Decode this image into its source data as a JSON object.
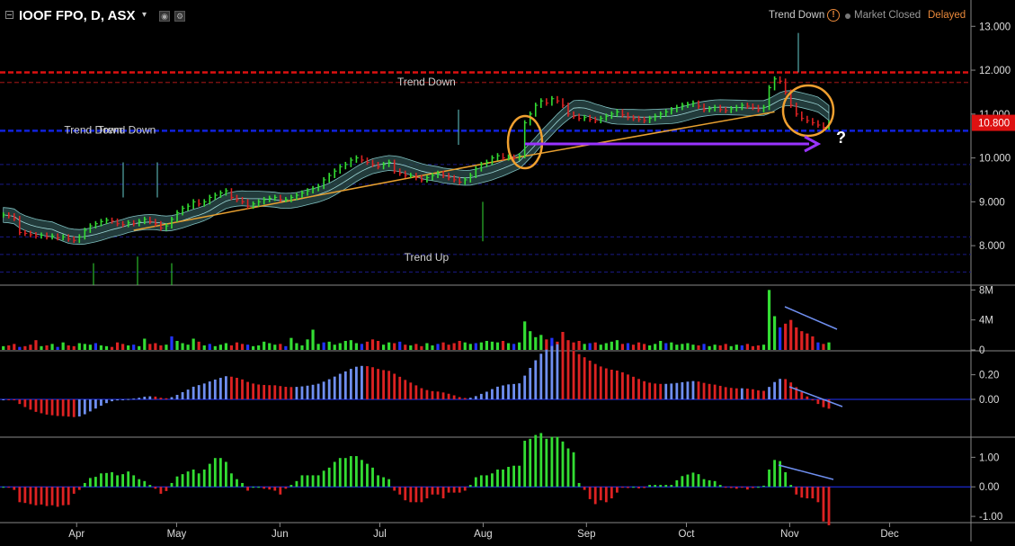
{
  "header": {
    "symbol": "IOOF FPO, D, ASX",
    "caret": "▾",
    "status_trend": "Trend Down",
    "status_market": "Market Closed",
    "status_delayed": "Delayed",
    "info_glyph": "!"
  },
  "colors": {
    "background": "#000000",
    "up": "#33dd33",
    "down": "#dd2222",
    "neutral": "#2233ff",
    "macd": "#6f8ff0",
    "trendline": "#e8a030",
    "arrow": "#9933ff",
    "resistance": "#dd1111",
    "support": "#1122dd",
    "status_delayed": "#e8883a",
    "price_tag": "#dd1111"
  },
  "question_mark": "?",
  "chart_data": [
    {
      "type": "line",
      "panel": "price",
      "x_axis": {
        "labels": [
          "Apr",
          "May",
          "Jun",
          "Jul",
          "Aug",
          "Sep",
          "Oct",
          "Nov",
          "Dec"
        ],
        "start_date": "2018-03-09",
        "end_date": "2018-12-20"
      },
      "y_axis": {
        "ticks": [
          "13.000",
          "12.000",
          "11.000",
          "10.000",
          "9.000",
          "8.000"
        ],
        "ylim": [
          7.1,
          13.6
        ]
      },
      "last_price": "10.800",
      "series": [
        {
          "kind": "close",
          "values": [
            8.7,
            8.68,
            8.62,
            8.3,
            8.28,
            8.25,
            8.22,
            8.24,
            8.2,
            8.22,
            8.18,
            8.2,
            8.15,
            8.12,
            8.2,
            8.35,
            8.45,
            8.5,
            8.55,
            8.58,
            8.56,
            8.5,
            8.48,
            8.52,
            8.5,
            8.55,
            8.6,
            8.55,
            8.5,
            8.4,
            8.45,
            8.6,
            8.75,
            8.85,
            8.9,
            9.0,
            8.95,
            9.0,
            9.1,
            9.15,
            9.2,
            9.25,
            9.1,
            9.05,
            9.0,
            8.9,
            8.95,
            9.0,
            9.05,
            9.08,
            9.1,
            9.05,
            9.05,
            9.1,
            9.15,
            9.2,
            9.25,
            9.3,
            9.35,
            9.5,
            9.6,
            9.7,
            9.8,
            9.85,
            9.95,
            10.0,
            9.95,
            9.9,
            9.85,
            9.8,
            9.85,
            9.9,
            9.7,
            9.65,
            9.6,
            9.6,
            9.55,
            9.5,
            9.55,
            9.6,
            9.65,
            9.6,
            9.55,
            9.5,
            9.45,
            9.5,
            9.6,
            9.75,
            9.85,
            9.9,
            10.0,
            10.05,
            10.0,
            10.02,
            10.0,
            10.05,
            10.8,
            11.0,
            11.2,
            11.3,
            11.25,
            11.35,
            11.3,
            11.2,
            11.0,
            10.95,
            10.9,
            10.92,
            10.88,
            10.85,
            10.9,
            10.95,
            11.0,
            11.05,
            10.98,
            10.92,
            10.9,
            10.88,
            10.85,
            10.9,
            10.95,
            11.0,
            11.05,
            11.1,
            11.15,
            11.2,
            11.22,
            11.25,
            11.18,
            11.1,
            11.12,
            11.15,
            11.1,
            11.08,
            11.12,
            11.15,
            11.2,
            11.18,
            11.15,
            11.1,
            11.15,
            11.6,
            11.8,
            11.75,
            11.5,
            11.2,
            11.0,
            10.9,
            10.85,
            10.8,
            10.75,
            10.7,
            10.8
          ]
        },
        {
          "kind": "annotation",
          "values": [
            {
              "text": "Trend Down",
              "date": "2018-07-15",
              "price": 11.65
            },
            {
              "text": "Trend Down",
              "date": "2018-04-06",
              "price": 10.55
            },
            {
              "text": "Trend Down",
              "date": "2018-04-16",
              "price": 10.55
            },
            {
              "text": "Trend Up",
              "date": "2018-07-15",
              "price": 7.65
            }
          ]
        }
      ]
    },
    {
      "type": "bar",
      "panel": "volume",
      "y_axis": {
        "ticks": [
          "8M",
          "4M",
          "0"
        ],
        "ylim": [
          0,
          8.4
        ]
      },
      "values_millions": [
        0.5,
        0.6,
        0.8,
        0.4,
        0.5,
        0.7,
        1.3,
        0.5,
        0.6,
        0.8,
        0.4,
        1.0,
        0.6,
        0.5,
        0.9,
        0.8,
        0.7,
        0.9,
        0.6,
        0.5,
        0.4,
        1.0,
        0.8,
        0.6,
        0.7,
        0.5,
        1.5,
        0.8,
        0.9,
        0.6,
        0.7,
        1.8,
        1.2,
        0.9,
        0.7,
        1.5,
        1.1,
        0.6,
        0.8,
        0.5,
        0.7,
        0.9,
        0.6,
        1.0,
        0.8,
        0.7,
        0.5,
        0.6,
        1.1,
        0.9,
        0.7,
        0.8,
        0.5,
        1.6,
        0.9,
        0.6,
        1.4,
        2.7,
        0.8,
        1.0,
        1.1,
        0.7,
        0.9,
        1.2,
        1.3,
        0.9,
        0.8,
        1.1,
        1.4,
        1.2,
        0.7,
        1.0,
        0.9,
        1.1,
        0.7,
        0.6,
        0.8,
        0.5,
        0.9,
        0.6,
        0.8,
        1.0,
        0.7,
        0.9,
        1.2,
        1.0,
        0.8,
        0.9,
        1.0,
        1.2,
        1.1,
        1.0,
        1.2,
        0.9,
        0.8,
        1.0,
        3.8,
        2.5,
        1.7,
        2.0,
        1.4,
        1.6,
        1.1,
        2.4,
        1.3,
        1.0,
        1.2,
        0.8,
        0.9,
        1.0,
        0.7,
        0.9,
        1.1,
        1.3,
        0.8,
        0.9,
        0.7,
        1.0,
        0.8,
        0.6,
        0.8,
        1.2,
        0.9,
        1.0,
        0.7,
        0.8,
        0.9,
        0.7,
        0.6,
        0.8,
        0.5,
        0.7,
        0.6,
        0.8,
        0.5,
        0.7,
        0.6,
        0.8,
        0.5,
        0.6,
        0.7,
        8.0,
        4.5,
        3.0,
        3.5,
        4.0,
        3.0,
        2.5,
        2.2,
        1.8,
        1.0,
        0.8,
        1.0
      ]
    },
    {
      "type": "bar",
      "panel": "macd",
      "y_axis": {
        "ticks": [
          "0.20",
          "0.00"
        ],
        "ylim": [
          -0.3,
          0.38
        ]
      }
    },
    {
      "type": "bar",
      "panel": "momentum",
      "y_axis": {
        "ticks": [
          "1.00",
          "0.00",
          "-1.00"
        ],
        "ylim": [
          -1.18,
          1.62
        ]
      }
    }
  ]
}
